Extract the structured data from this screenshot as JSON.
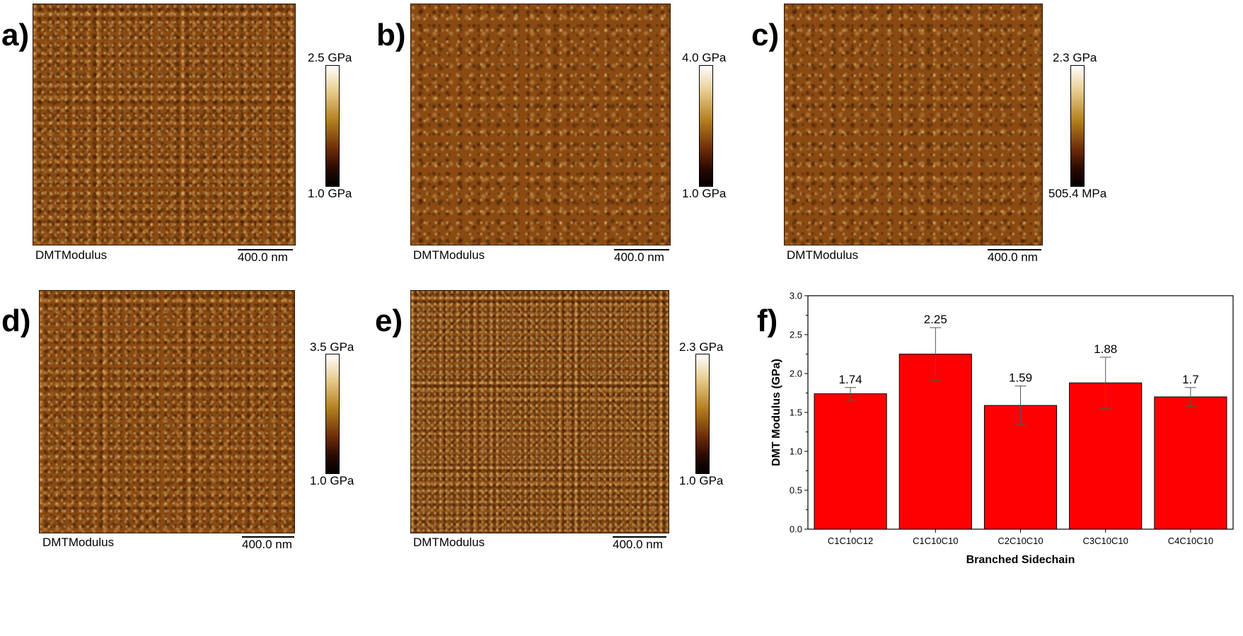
{
  "panels": [
    {
      "letter": "a)",
      "label": "DMTModulus",
      "scale": "400.0 nm",
      "cbar_max": "2.5 GPa",
      "cbar_min": "1.0 GPa"
    },
    {
      "letter": "b)",
      "label": "DMTModulus",
      "scale": "400.0 nm",
      "cbar_max": "4.0 GPa",
      "cbar_min": "1.0 GPa"
    },
    {
      "letter": "c)",
      "label": "DMTModulus",
      "scale": "400.0 nm",
      "cbar_max": "2.3 GPa",
      "cbar_min": "505.4 MPa"
    },
    {
      "letter": "d)",
      "label": "DMTModulus",
      "scale": "400.0 nm",
      "cbar_max": "3.5 GPa",
      "cbar_min": "1.0 GPa"
    },
    {
      "letter": "e)",
      "label": "DMTModulus",
      "scale": "400.0 nm",
      "cbar_max": "2.3 GPa",
      "cbar_min": "1.0 GPa"
    },
    {
      "letter": "f)"
    }
  ],
  "colors": {
    "bar": "#ff0000",
    "colormap_top": "#ffffff",
    "colormap_bottom": "#000000",
    "afm_base": "#8a4a12"
  },
  "chart_data": {
    "type": "bar",
    "categories": [
      "C1C10C12",
      "C1C10C10",
      "C2C10C10",
      "C3C10C10",
      "C4C10C10"
    ],
    "values": [
      1.74,
      2.25,
      1.59,
      1.88,
      1.7
    ],
    "value_labels": [
      "1.74",
      "2.25",
      "1.59",
      "1.88",
      "1.7"
    ],
    "errors": [
      0.08,
      0.34,
      0.25,
      0.33,
      0.12
    ],
    "xlabel": "Branched Sidechain",
    "ylabel": "DMT Modulus (GPa)",
    "ylim": [
      0,
      3.0
    ],
    "yticks": [
      "0.0",
      "0.5",
      "1.0",
      "1.5",
      "2.0",
      "2.5",
      "3.0"
    ],
    "grid": false
  }
}
